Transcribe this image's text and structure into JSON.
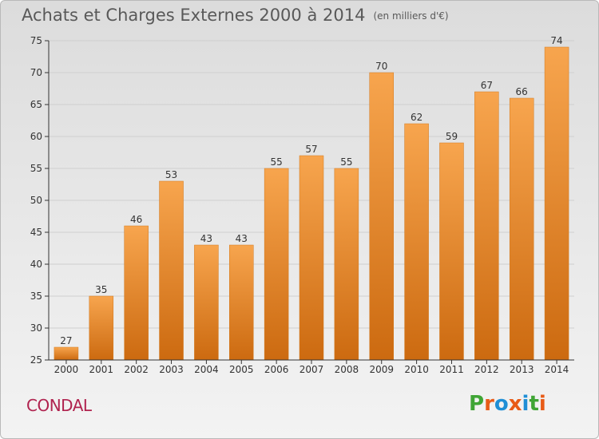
{
  "header": {
    "title": "Achats et Charges Externes 2000 à 2014",
    "unit": "(en milliers d'€)"
  },
  "footer": {
    "town": "CONDAL",
    "logo_text": "Proxiti"
  },
  "colors": {
    "bar_top": "#f7a54e",
    "bar_bottom": "#cc6a10",
    "axis": "#333333",
    "grid": "#cfcfcf",
    "town": "#b0234f",
    "logo": [
      "#3fa535",
      "#e85b17",
      "#1f8fd6",
      "#e85b17",
      "#1f8fd6",
      "#3fa535",
      "#e85b17"
    ]
  },
  "chart_data": {
    "type": "bar",
    "categories": [
      "2000",
      "2001",
      "2002",
      "2003",
      "2004",
      "2005",
      "2006",
      "2007",
      "2008",
      "2009",
      "2010",
      "2011",
      "2012",
      "2013",
      "2014"
    ],
    "values": [
      27,
      35,
      46,
      53,
      43,
      43,
      55,
      57,
      55,
      70,
      62,
      59,
      67,
      66,
      74
    ],
    "title": "Achats et Charges Externes 2000 à 2014",
    "xlabel": "",
    "ylabel": "",
    "ylim": [
      25,
      75
    ],
    "yticks": [
      25,
      30,
      35,
      40,
      45,
      50,
      55,
      60,
      65,
      70,
      75
    ],
    "grid": true,
    "data_labels": true
  }
}
